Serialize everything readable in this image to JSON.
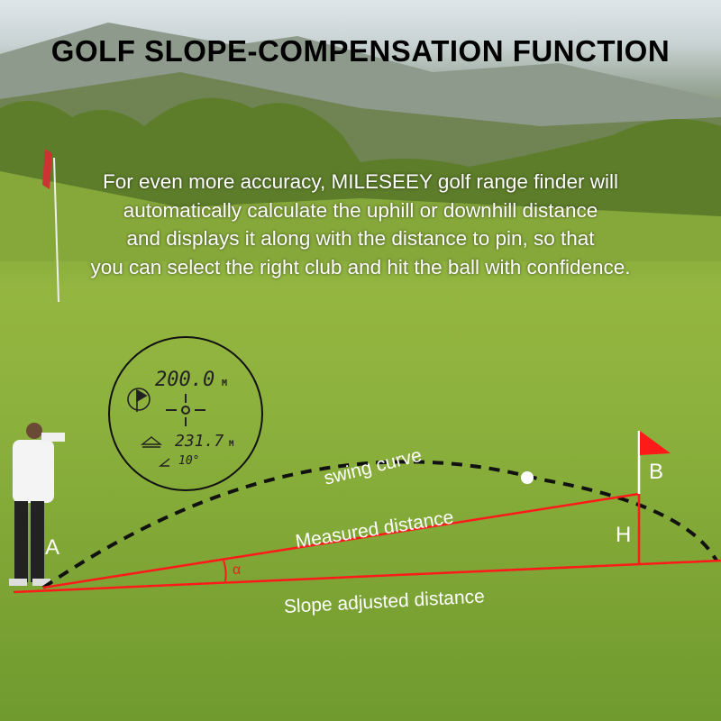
{
  "title": "GOLF SLOPE-COMPENSATION FUNCTION",
  "description": [
    "For even more accuracy, MILESEEY golf range finder will",
    "automatically calculate the uphill or downhill distance",
    "and displays it along with the distance to pin, so that",
    "you can select the right club and hit the ball with confidence."
  ],
  "rangefinder_display": {
    "distance": "200.0",
    "distance_unit": "M",
    "slope_distance": "231.7",
    "slope_unit": "M",
    "angle": "10°",
    "icons": [
      "flag-mode-icon",
      "crosshair-icon",
      "slope-icon",
      "angle-icon"
    ]
  },
  "diagram": {
    "swing_curve": "swing curve",
    "measured_distance": "Measured distance",
    "slope_adjusted_distance": "Slope adjusted distance",
    "point_a": "A",
    "point_b": "B",
    "height": "H",
    "angle": "α",
    "line_color": "#ff1a1a"
  }
}
